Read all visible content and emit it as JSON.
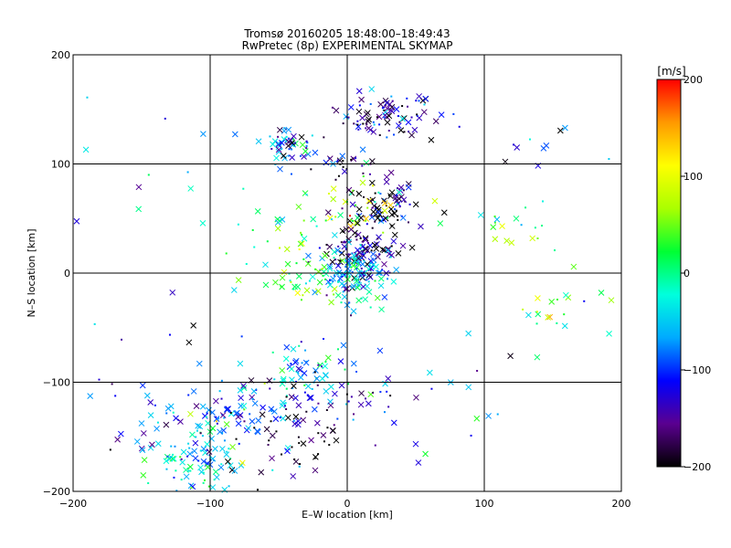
{
  "chart_data": {
    "type": "scatter",
    "title_line1": "Tromsø 20160205 18:48:00–18:49:43",
    "title_line2": "RwPretec (8p) EXPERIMENTAL SKYMAP",
    "xlabel": "E–W location [km]",
    "ylabel": "N–S location [km]",
    "xlim": [
      -200,
      200
    ],
    "ylim": [
      -200,
      200
    ],
    "xticks": [
      -200,
      -100,
      0,
      100,
      200
    ],
    "yticks": [
      -200,
      -100,
      0,
      100,
      200
    ],
    "grid": true,
    "colorbar": {
      "label": "[m/s]",
      "range": [
        -200,
        200
      ],
      "ticks": [
        200,
        100,
        0,
        -100,
        -200
      ],
      "colormap": [
        "#000000",
        "#5a0090",
        "#0000ff",
        "#00aaff",
        "#00ffdd",
        "#00ff33",
        "#aaff00",
        "#ffff00",
        "#ff9900",
        "#ff0000"
      ]
    },
    "clusters": [
      {
        "x": 30,
        "y": 145,
        "sx": 18,
        "sy": 10,
        "n": 90,
        "vel": -150
      },
      {
        "x": -40,
        "y": 118,
        "sx": 12,
        "sy": 8,
        "n": 55,
        "vel": -90
      },
      {
        "x": 0,
        "y": 100,
        "sx": 12,
        "sy": 6,
        "n": 25,
        "vel": -170
      },
      {
        "x": 25,
        "y": 60,
        "sx": 14,
        "sy": 12,
        "n": 80,
        "vel": -180
      },
      {
        "x": 0,
        "y": 60,
        "sx": 20,
        "sy": 12,
        "n": 40,
        "vel": 60
      },
      {
        "x": 10,
        "y": 25,
        "sx": 18,
        "sy": 12,
        "n": 90,
        "vel": -160
      },
      {
        "x": 5,
        "y": 0,
        "sx": 15,
        "sy": 12,
        "n": 120,
        "vel": -70
      },
      {
        "x": -20,
        "y": -10,
        "sx": 25,
        "sy": 10,
        "n": 40,
        "vel": 20
      },
      {
        "x": 110,
        "y": 40,
        "sx": 20,
        "sy": 12,
        "n": 20,
        "vel": 30
      },
      {
        "x": 150,
        "y": -30,
        "sx": 25,
        "sy": 15,
        "n": 22,
        "vel": 50
      },
      {
        "x": 150,
        "y": 105,
        "sx": 25,
        "sy": 15,
        "n": 10,
        "vel": -100
      },
      {
        "x": -35,
        "y": -95,
        "sx": 20,
        "sy": 15,
        "n": 70,
        "vel": -50
      },
      {
        "x": -40,
        "y": -150,
        "sx": 22,
        "sy": 25,
        "n": 60,
        "vel": -180
      },
      {
        "x": -105,
        "y": -165,
        "sx": 18,
        "sy": 22,
        "n": 120,
        "vel": -50
      },
      {
        "x": -90,
        "y": -130,
        "sx": 25,
        "sy": 15,
        "n": 50,
        "vel": -110
      },
      {
        "x": 0,
        "y": -110,
        "sx": 25,
        "sy": 15,
        "n": 25,
        "vel": -140
      },
      {
        "x": 60,
        "y": -130,
        "sx": 40,
        "sy": 40,
        "n": 20,
        "vel": -90
      },
      {
        "x": -140,
        "y": -120,
        "sx": 25,
        "sy": 30,
        "n": 25,
        "vel": -130
      },
      {
        "x": -40,
        "y": 30,
        "sx": 25,
        "sy": 30,
        "n": 30,
        "vel": 10
      },
      {
        "x": -120,
        "y": 60,
        "sx": 60,
        "sy": 70,
        "n": 20,
        "vel": -60
      }
    ]
  }
}
